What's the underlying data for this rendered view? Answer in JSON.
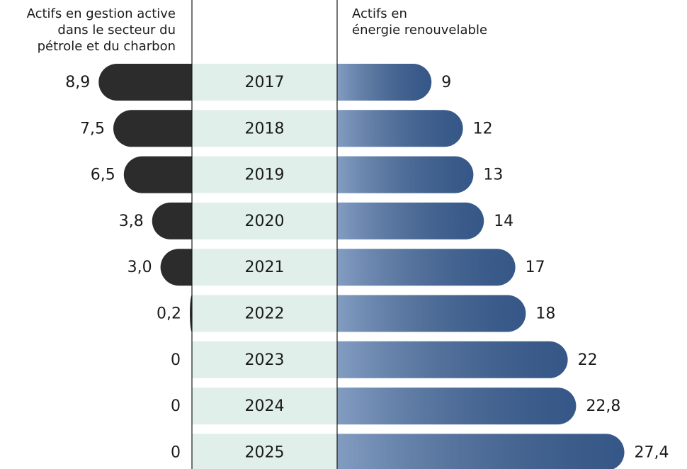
{
  "chart_data": {
    "type": "butterfly-bar",
    "categories": [
      "2017",
      "2018",
      "2019",
      "2020",
      "2021",
      "2022",
      "2023",
      "2024",
      "2025"
    ],
    "series": [
      {
        "name": "Actifs en gestion active\ndans le secteur du\npétrole et du charbon",
        "color": "#2c2c2c",
        "values": [
          8.9,
          7.5,
          6.5,
          3.8,
          3.0,
          0.2,
          0,
          0,
          0
        ],
        "value_labels": [
          "8,9",
          "7,5",
          "6,5",
          "3,8",
          "3,0",
          "0,2",
          "0",
          "0",
          "0"
        ]
      },
      {
        "name": "Actifs en\nénergie renouvelable",
        "color": "#3f67a0",
        "values": [
          9,
          12,
          13,
          14,
          17,
          18,
          22,
          22.8,
          27.4
        ],
        "value_labels": [
          "9",
          "12",
          "13",
          "14",
          "17",
          "18",
          "22",
          "22,8",
          "27,4"
        ]
      }
    ]
  }
}
